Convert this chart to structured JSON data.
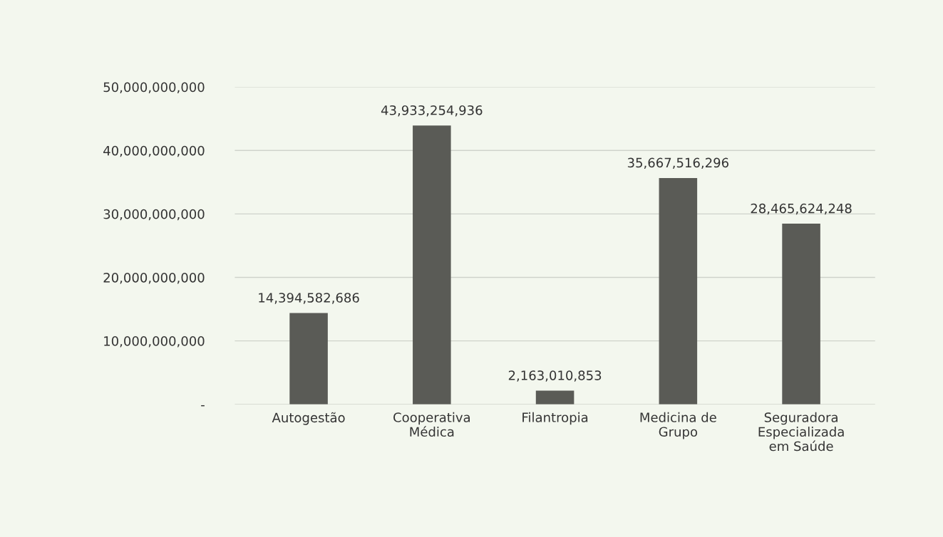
{
  "chart_data": {
    "type": "bar",
    "categories": [
      "Autogestão",
      "Cooperativa\nMédica",
      "Filantropia",
      "Medicina de\nGrupo",
      "Seguradora\nEspecializada\nem Saúde"
    ],
    "values": [
      14394582686,
      43933254936,
      2163010853,
      35667516296,
      28465624248
    ],
    "color": "#5a5b56",
    "ylim": [
      0,
      50000000000
    ],
    "yticks": [
      {
        "value": 0,
        "label": "-"
      },
      {
        "value": 10000000000,
        "label": "10,000,000,000"
      },
      {
        "value": 20000000000,
        "label": "20,000,000,000"
      },
      {
        "value": 30000000000,
        "label": "30,000,000,000"
      },
      {
        "value": 40000000000,
        "label": "40,000,000,000"
      },
      {
        "value": 50000000000,
        "label": "50,000,000,000"
      }
    ],
    "grid": "y",
    "value_labels": [
      "14,394,582,686",
      "43,933,254,936",
      "2,163,010,853",
      "35,667,516,296",
      "28,465,624,248"
    ],
    "legend": false
  }
}
